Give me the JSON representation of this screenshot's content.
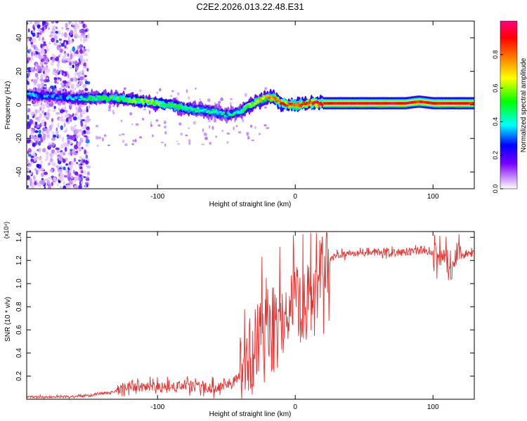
{
  "figure_title": "C2E2.2026.013.22.48.E31",
  "chart_data": [
    {
      "type": "heatmap",
      "name": "spectrogram",
      "xlabel": "Height of straight line (km)",
      "ylabel": "Frequency (Hz)",
      "xlim": [
        -195,
        130
      ],
      "ylim": [
        -50,
        50
      ],
      "x_ticks": [
        -100,
        0,
        100
      ],
      "y_ticks": [
        -40,
        -20,
        0,
        20,
        40
      ],
      "colorbar": {
        "label": "Normalized spectral amplitude",
        "range": [
          0,
          1
        ],
        "ticks": [
          "0.0",
          "0.2",
          "0.4",
          "0.6",
          "0.8"
        ],
        "tick_values": [
          0.0,
          0.2,
          0.4,
          0.6,
          0.8
        ],
        "colors": [
          "#ffffff",
          "#cc99ff",
          "#7a00ff",
          "#0000ff",
          "#00ffff",
          "#00ff00",
          "#ffff00",
          "#ff7f00",
          "#ff0000",
          "#ff0080"
        ]
      },
      "ridge": {
        "x": [
          -195,
          -175,
          -160,
          -150,
          -140,
          -130,
          -120,
          -110,
          -100,
          -90,
          -80,
          -70,
          -60,
          -50,
          -45,
          -40,
          -35,
          -30,
          -25,
          -20,
          -15,
          -10,
          -5,
          0,
          10,
          20,
          40,
          60,
          80,
          90,
          100,
          110,
          120,
          130
        ],
        "frequency": [
          6,
          5,
          4,
          4,
          4,
          4,
          3,
          2,
          1,
          0,
          -2,
          -3,
          -4,
          -6,
          -5,
          -4,
          -1,
          1,
          3,
          5,
          4,
          1,
          0,
          0,
          1,
          1,
          1,
          1,
          1,
          2,
          1,
          1,
          1,
          1
        ],
        "amplitude": [
          0.35,
          0.3,
          0.35,
          0.45,
          0.5,
          0.5,
          0.55,
          0.55,
          0.55,
          0.5,
          0.5,
          0.45,
          0.45,
          0.4,
          0.4,
          0.45,
          0.55,
          0.6,
          0.7,
          0.75,
          0.8,
          0.85,
          0.85,
          0.8,
          0.85,
          0.9,
          0.95,
          0.95,
          0.95,
          0.9,
          0.9,
          0.95,
          0.95,
          0.9
        ]
      },
      "noise_region_x": [
        -195,
        -150
      ]
    },
    {
      "type": "line",
      "name": "snr",
      "xlabel": "Height of straight line (km)",
      "ylabel": "SNR (10 * v/v)",
      "y_multiplier_label": "(x10⁴)",
      "xlim": [
        -195,
        130
      ],
      "ylim": [
        0,
        1.45
      ],
      "x_ticks": [
        -100,
        0,
        100
      ],
      "y_ticks": [
        0.2,
        0.4,
        0.6,
        0.8,
        1.0,
        1.2,
        1.4
      ],
      "series": [
        {
          "name": "SNR",
          "color": "#e8312f",
          "x": [
            -195,
            -170,
            -150,
            -130,
            -120,
            -110,
            -100,
            -90,
            -80,
            -70,
            -60,
            -50,
            -45,
            -40,
            -35,
            -30,
            -25,
            -20,
            -15,
            -10,
            -5,
            0,
            5,
            10,
            15,
            20,
            25,
            30,
            40,
            50,
            60,
            70,
            80,
            90,
            100,
            105,
            110,
            115,
            120,
            130
          ],
          "values": [
            0.02,
            0.02,
            0.03,
            0.07,
            0.12,
            0.1,
            0.1,
            0.1,
            0.12,
            0.1,
            0.1,
            0.13,
            0.15,
            0.22,
            0.38,
            0.45,
            0.55,
            0.62,
            0.65,
            0.72,
            0.78,
            0.85,
            0.8,
            0.88,
            1.02,
            1.12,
            1.2,
            1.24,
            1.26,
            1.26,
            1.27,
            1.27,
            1.27,
            1.28,
            1.26,
            1.24,
            1.18,
            1.25,
            1.25,
            1.26
          ]
        }
      ]
    }
  ]
}
